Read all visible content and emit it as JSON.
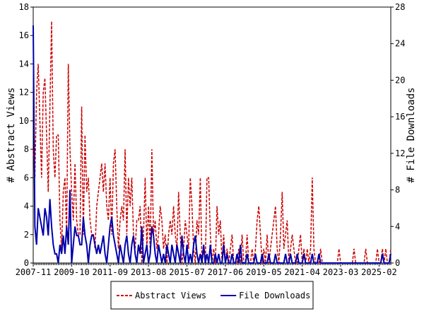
{
  "chart_data": {
    "type": "line",
    "ylabel": "# Abstract Views",
    "y2label": "# File Downloads",
    "categories": [
      "2007-11",
      null,
      null,
      null,
      null,
      null,
      null,
      null,
      null,
      null,
      null,
      null,
      null,
      null,
      null,
      null,
      null,
      null,
      null,
      null,
      null,
      null,
      null,
      "2009-10",
      null,
      null,
      null,
      null,
      null,
      null,
      null,
      null,
      null,
      null,
      null,
      null,
      null,
      null,
      null,
      null,
      null,
      null,
      null,
      null,
      null,
      null,
      "2011-09",
      null,
      null,
      null,
      null,
      null,
      null,
      null,
      null,
      null,
      null,
      null,
      null,
      null,
      null,
      null,
      null,
      null,
      null,
      null,
      null,
      null,
      null,
      "2013-08",
      null,
      null,
      null,
      null,
      null,
      null,
      null,
      null,
      null,
      null,
      null,
      null,
      null,
      null,
      null,
      null,
      null,
      null,
      null,
      null,
      null,
      null,
      "2015-07",
      null,
      null,
      null,
      null,
      null,
      null,
      null,
      null,
      null,
      null,
      null,
      null,
      null,
      null,
      null,
      null,
      null,
      null,
      null,
      null,
      null,
      null,
      "2017-06",
      null,
      null,
      null,
      null,
      null,
      null,
      null,
      null,
      null,
      null,
      null,
      null,
      null,
      null,
      null,
      null,
      null,
      null,
      null,
      null,
      null,
      null,
      "2019-05",
      null,
      null,
      null,
      null,
      null,
      null,
      null,
      null,
      null,
      null,
      null,
      null,
      null,
      null,
      null,
      null,
      null,
      null,
      null,
      null,
      null,
      null,
      "2021-04",
      null,
      null,
      null,
      null,
      null,
      null,
      null,
      null,
      null,
      null,
      null,
      null,
      null,
      null,
      null,
      null,
      null,
      null,
      null,
      null,
      null,
      null,
      "2023-03",
      null,
      null,
      null,
      null,
      null,
      null,
      null,
      null,
      null,
      null,
      null,
      null,
      null,
      null,
      null,
      null,
      null,
      null,
      null,
      null,
      null,
      null,
      "2025-02",
      null,
      null,
      null,
      null,
      null,
      null,
      null
    ],
    "series": [
      {
        "name": "Abstract Views",
        "color": "#cc0000",
        "axis": "y",
        "values": [
          8,
          6,
          12,
          14,
          10,
          6,
          12,
          13,
          9,
          5,
          11,
          17,
          8,
          6,
          9,
          9,
          3,
          1,
          5,
          6,
          2,
          14,
          8,
          5,
          3,
          7,
          3,
          2,
          2,
          11,
          2,
          9,
          5,
          6,
          3,
          2,
          2,
          1,
          4,
          5,
          6,
          7,
          5,
          7,
          4,
          3,
          6,
          2,
          7,
          8,
          4,
          1,
          3,
          4,
          3,
          8,
          2,
          6,
          4,
          6,
          2,
          1,
          3,
          3,
          4,
          0,
          2,
          6,
          1,
          4,
          1,
          8,
          2,
          3,
          1,
          2,
          4,
          3,
          1,
          2,
          0,
          2,
          3,
          2,
          4,
          2,
          1,
          5,
          2,
          0,
          1,
          3,
          2,
          1,
          6,
          4,
          1,
          0,
          3,
          2,
          6,
          0,
          1,
          0,
          6,
          6,
          2,
          0,
          1,
          0,
          4,
          2,
          3,
          0,
          2,
          0,
          1,
          0,
          1,
          2,
          0,
          0,
          0,
          1,
          0,
          2,
          0,
          0,
          2,
          0,
          0,
          1,
          0,
          1,
          3,
          4,
          2,
          0,
          1,
          0,
          2,
          0,
          1,
          2,
          3,
          4,
          1,
          0,
          2,
          5,
          1,
          2,
          3,
          0,
          1,
          2,
          1,
          0,
          0,
          1,
          2,
          0,
          1,
          0,
          1,
          0,
          1,
          6,
          1,
          0,
          0,
          0,
          1,
          0,
          0,
          0,
          0,
          0,
          0,
          0,
          0,
          0,
          0,
          1,
          0,
          0,
          0,
          0,
          0,
          0,
          0,
          0,
          1,
          0,
          0,
          0,
          0,
          0,
          0,
          1,
          0,
          0,
          0,
          0,
          0,
          0,
          1,
          0,
          0,
          1,
          0,
          1,
          0,
          0,
          1
        ]
      },
      {
        "name": "File Downloads",
        "color": "#0000aa",
        "axis": "y2",
        "values": [
          26,
          4,
          2,
          6,
          5,
          4,
          3,
          6,
          5,
          3,
          7,
          4,
          2,
          1,
          1,
          0,
          2,
          1,
          3,
          1,
          4,
          2,
          8,
          0,
          2,
          4,
          3,
          3,
          2,
          2,
          5,
          3,
          2,
          0,
          2,
          3,
          3,
          2,
          1,
          2,
          1,
          2,
          3,
          1,
          0,
          2,
          4,
          5,
          3,
          2,
          1,
          0,
          2,
          1,
          0,
          2,
          3,
          1,
          0,
          2,
          3,
          1,
          0,
          2,
          1,
          4,
          0,
          1,
          2,
          0,
          1,
          4,
          3,
          1,
          0,
          2,
          1,
          0,
          1,
          0,
          2,
          1,
          0,
          2,
          1,
          0,
          2,
          1,
          0,
          3,
          1,
          0,
          2,
          0,
          1,
          0,
          2,
          3,
          1,
          0,
          1,
          0,
          2,
          0,
          1,
          0,
          2,
          0,
          0,
          1,
          0,
          1,
          0,
          0,
          2,
          0,
          1,
          0,
          0,
          1,
          0,
          0,
          1,
          0,
          2,
          0,
          0,
          0,
          1,
          0,
          0,
          0,
          0,
          1,
          0,
          0,
          0,
          1,
          0,
          0,
          0,
          1,
          0,
          0,
          0,
          1,
          0,
          0,
          0,
          0,
          0,
          1,
          0,
          0,
          1,
          0,
          0,
          0,
          1,
          0,
          0,
          0,
          1,
          0,
          0,
          0,
          0,
          1,
          0,
          0,
          0,
          1,
          0,
          0,
          0,
          0,
          0,
          0,
          0,
          0,
          0,
          0,
          0,
          0,
          0,
          0,
          0,
          0,
          0,
          0,
          0,
          0,
          0,
          0,
          0,
          0,
          0,
          0,
          0,
          0,
          0,
          0,
          0,
          0,
          0,
          0,
          0,
          0,
          0,
          1,
          0,
          0,
          0,
          0,
          1
        ]
      }
    ],
    "ylim": [
      0,
      18
    ],
    "yticks": [
      0,
      2,
      4,
      6,
      8,
      10,
      12,
      14,
      16,
      18
    ],
    "y2lim": [
      0,
      28
    ],
    "y2ticks": [
      0,
      4,
      8,
      12,
      16,
      20,
      24,
      28
    ],
    "legend": "bottom"
  }
}
